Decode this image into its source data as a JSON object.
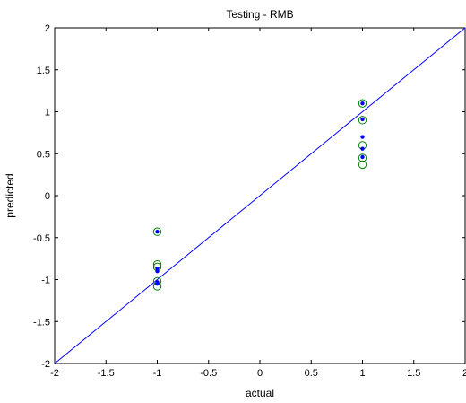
{
  "chart_data": {
    "type": "scatter",
    "title": "Testing - RMB",
    "xlabel": "actual",
    "ylabel": "predicted",
    "xlim": [
      -2,
      2
    ],
    "ylim": [
      -2,
      2
    ],
    "xticks": [
      "-2",
      "-1.5",
      "-1",
      "-0.5",
      "0",
      "0.5",
      "1",
      "1.5",
      "2"
    ],
    "yticks": [
      "2",
      "1.5",
      "1",
      "0.5",
      "0",
      "-0.5",
      "-1",
      "-1.5",
      "-2"
    ],
    "grid": false,
    "reference_line": {
      "x": [
        -2,
        2
      ],
      "y": [
        -2,
        2
      ],
      "color": "#0000ff"
    },
    "series": [
      {
        "marker": "circle-open",
        "color": "#008000",
        "points": [
          {
            "x": -1,
            "y": -0.43
          },
          {
            "x": -1,
            "y": -0.82
          },
          {
            "x": -1,
            "y": -0.85
          },
          {
            "x": -1,
            "y": -1.02
          },
          {
            "x": -1,
            "y": -1.08
          },
          {
            "x": 1,
            "y": 1.1
          },
          {
            "x": 1,
            "y": 0.9
          },
          {
            "x": 1,
            "y": 0.6
          },
          {
            "x": 1,
            "y": 0.45
          },
          {
            "x": 1,
            "y": 0.37
          }
        ]
      },
      {
        "marker": "dot",
        "color": "#0000ff",
        "points": [
          {
            "x": -1,
            "y": -0.43
          },
          {
            "x": -1,
            "y": -0.87
          },
          {
            "x": -1,
            "y": -0.9
          },
          {
            "x": -1,
            "y": -1.03
          },
          {
            "x": -1,
            "y": -1.05
          },
          {
            "x": 1,
            "y": 1.1
          },
          {
            "x": 1,
            "y": 0.91
          },
          {
            "x": 1,
            "y": 0.7
          },
          {
            "x": 1,
            "y": 0.56
          },
          {
            "x": 1,
            "y": 0.46
          }
        ]
      }
    ]
  }
}
